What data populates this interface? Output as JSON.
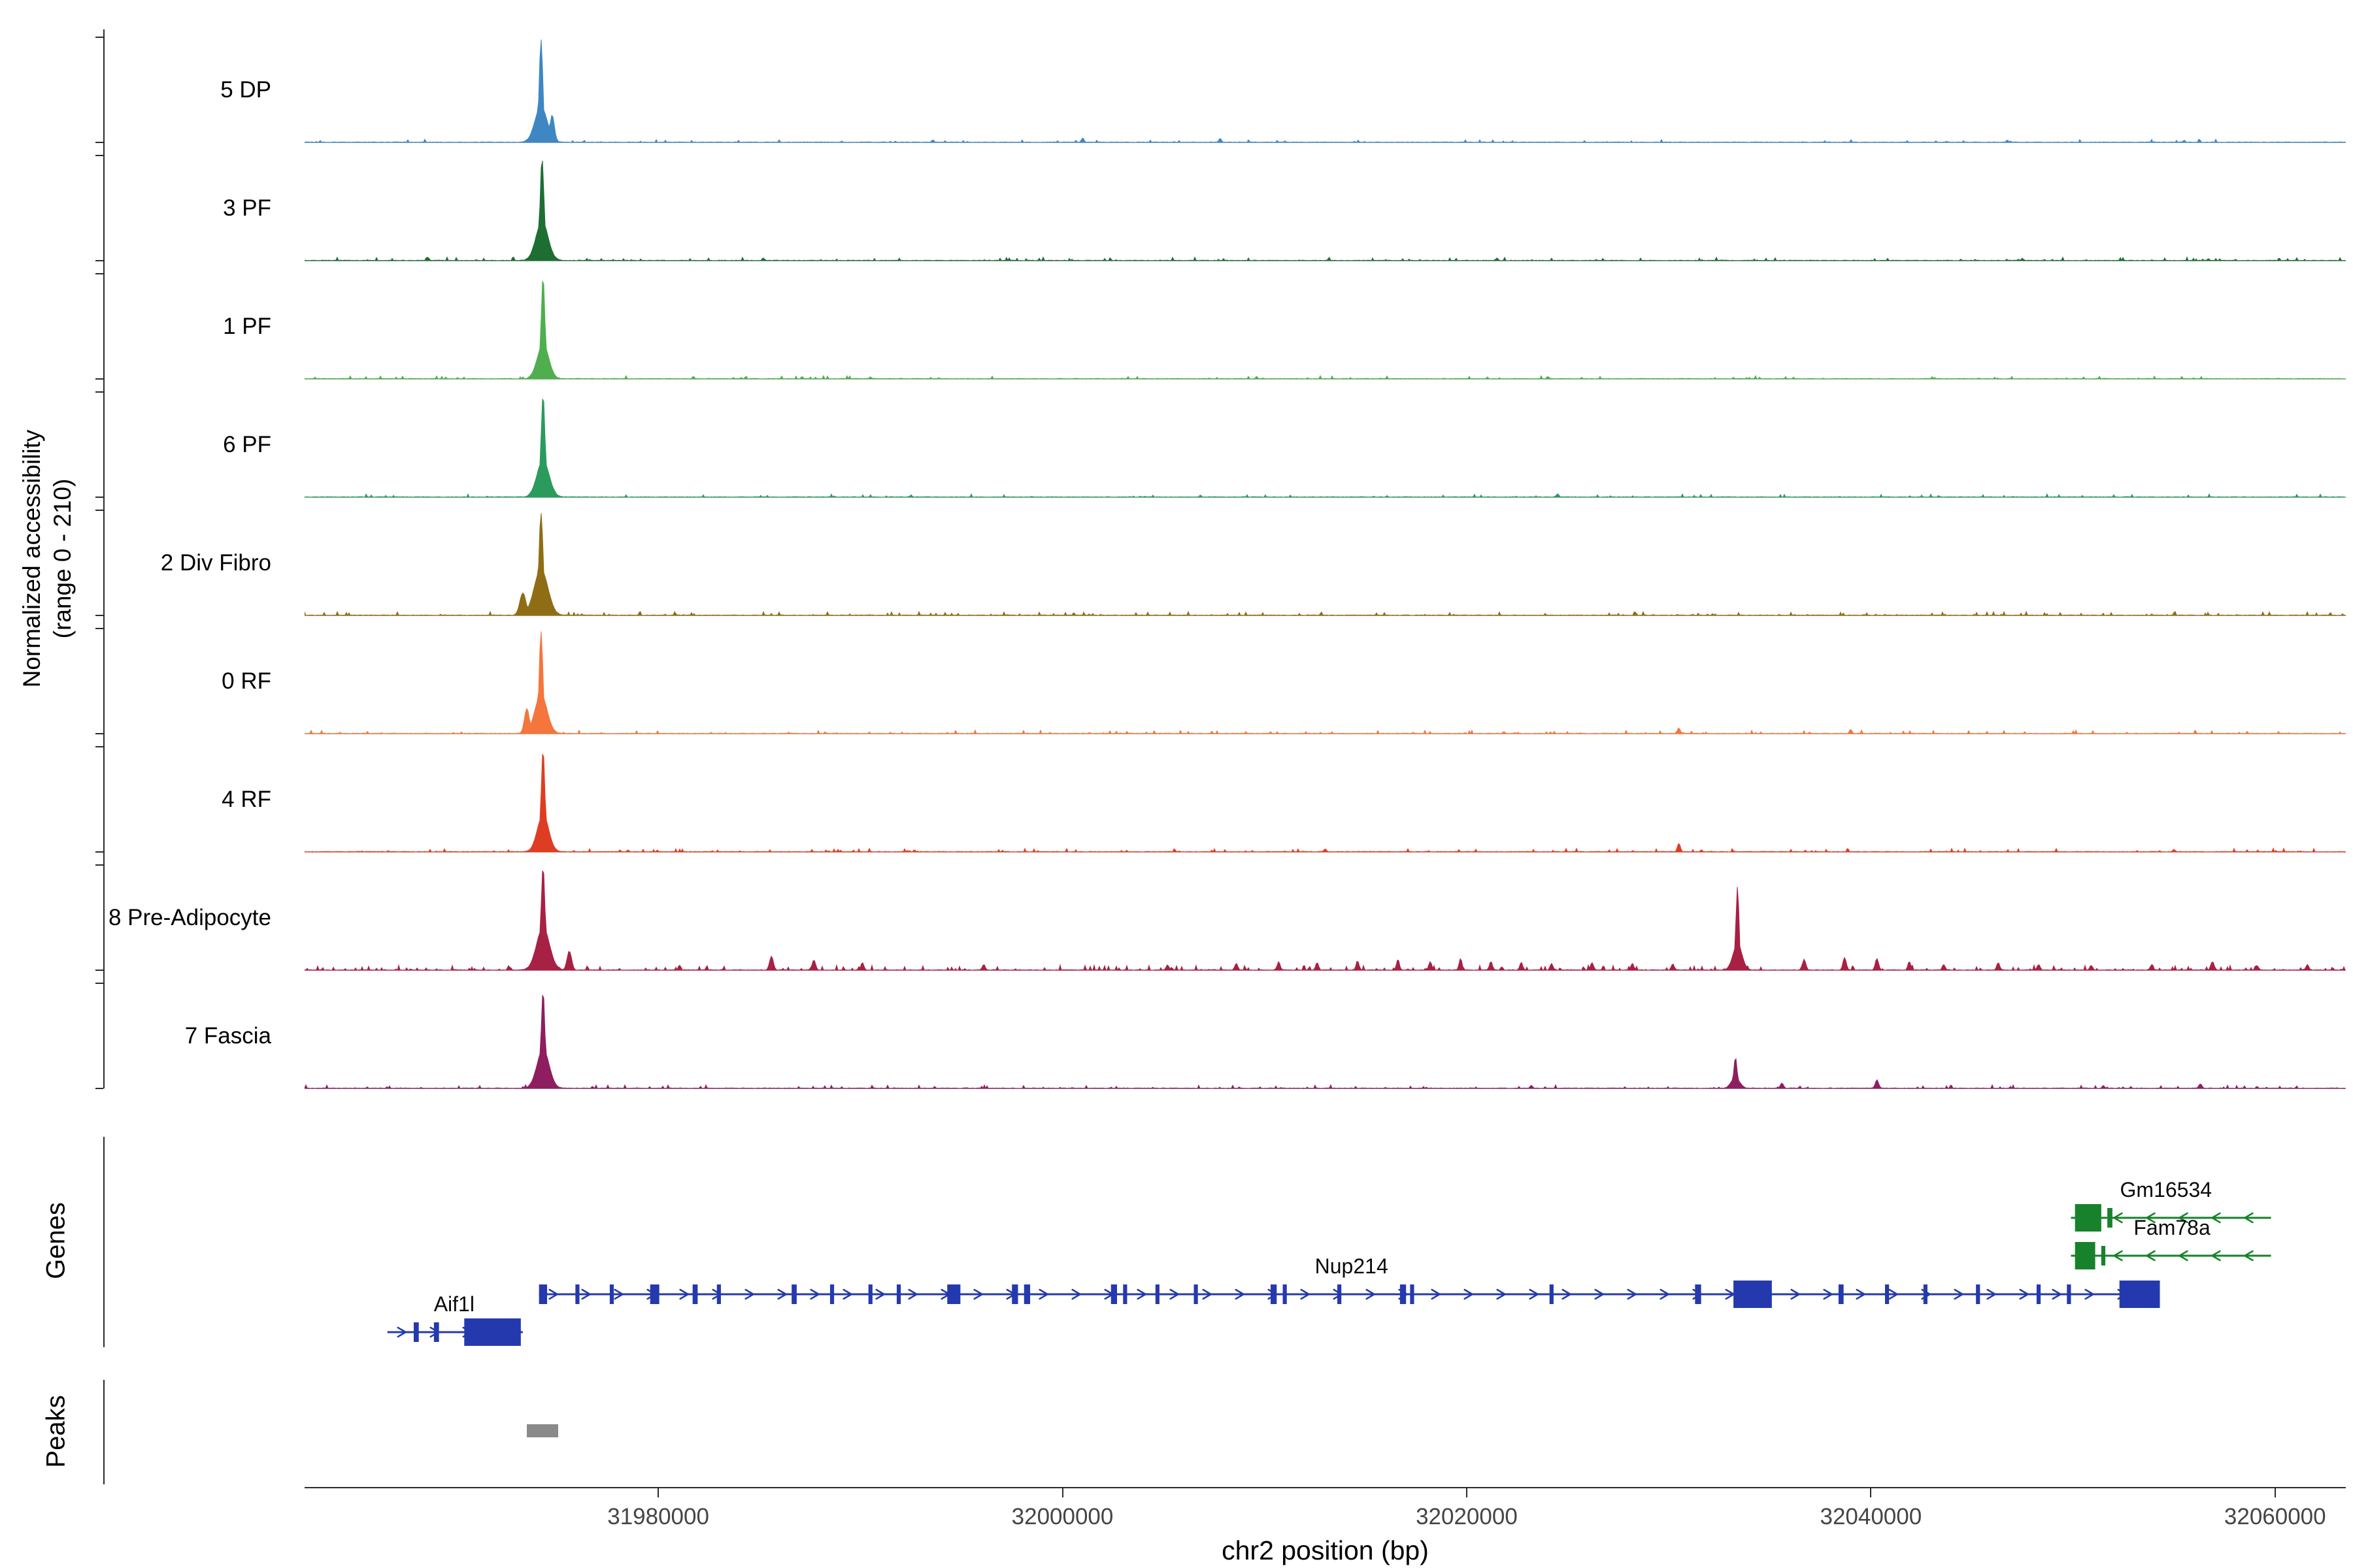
{
  "labels": {
    "y_axis_line1": "Normalized accessibility",
    "y_axis_line2": "(range 0 - 210)",
    "genes_section": "Genes",
    "peaks_section": "Peaks",
    "x_axis_title": "chr2 position (bp)"
  },
  "chart_data": {
    "type": "area",
    "title": "",
    "xlabel": "chr2 position (bp)",
    "ylabel": "Normalized accessibility (range 0 - 210)",
    "xlim": [
      31962500,
      32063500
    ],
    "ylim": [
      0,
      210
    ],
    "x_ticks": [
      31980000,
      32000000,
      32020000,
      32040000,
      32060000
    ],
    "legend_position": "left-track-labels",
    "grid": false,
    "tracks": [
      {
        "label": "5 DP",
        "color": "#3E87C2",
        "seed": 101,
        "noise_level": 3.5,
        "noise_density": 0.05,
        "peaks": [
          [
            31974200,
            300,
            72
          ],
          [
            31974200,
            90,
            206
          ],
          [
            31974750,
            110,
            55
          ],
          [
            32001000,
            55,
            9
          ],
          [
            32007800,
            55,
            8
          ],
          [
            31993600,
            50,
            5
          ],
          [
            32055500,
            50,
            4
          ]
        ]
      },
      {
        "label": "3 PF",
        "color": "#1E6E34",
        "seed": 202,
        "noise_level": 4,
        "noise_density": 0.07,
        "peaks": [
          [
            31974250,
            300,
            78
          ],
          [
            31974250,
            95,
            206
          ],
          [
            31968600,
            60,
            6
          ],
          [
            31985200,
            55,
            5
          ],
          [
            32021500,
            55,
            5
          ],
          [
            32047500,
            55,
            4
          ]
        ]
      },
      {
        "label": "1 PF",
        "color": "#4FAE4E",
        "seed": 303,
        "noise_level": 3.5,
        "noise_density": 0.06,
        "peaks": [
          [
            31974300,
            280,
            70
          ],
          [
            31974300,
            90,
            206
          ],
          [
            31990500,
            50,
            4
          ],
          [
            32024000,
            50,
            4
          ]
        ]
      },
      {
        "label": "6 PF",
        "color": "#2B9A5D",
        "seed": 404,
        "noise_level": 3.5,
        "noise_density": 0.06,
        "peaks": [
          [
            31974300,
            300,
            74
          ],
          [
            31974300,
            95,
            206
          ],
          [
            32024500,
            60,
            6
          ],
          [
            31992500,
            50,
            4
          ]
        ]
      },
      {
        "label": "2 Div Fibro",
        "color": "#8F6D15",
        "seed": 505,
        "noise_level": 4.5,
        "noise_density": 0.1,
        "peaks": [
          [
            31974200,
            340,
            92
          ],
          [
            31974200,
            100,
            206
          ],
          [
            31973300,
            150,
            45
          ]
        ]
      },
      {
        "label": "0 RF",
        "color": "#F4763C",
        "seed": 606,
        "noise_level": 4,
        "noise_density": 0.07,
        "peaks": [
          [
            31974200,
            300,
            78
          ],
          [
            31974200,
            90,
            206
          ],
          [
            31973500,
            120,
            50
          ],
          [
            32030500,
            70,
            11
          ],
          [
            32039000,
            60,
            8
          ]
        ]
      },
      {
        "label": "4 RF",
        "color": "#DD3E23",
        "seed": 707,
        "noise_level": 4,
        "noise_density": 0.07,
        "peaks": [
          [
            31974300,
            280,
            74
          ],
          [
            31974300,
            90,
            206
          ],
          [
            32030500,
            70,
            17
          ],
          [
            32013000,
            55,
            6
          ],
          [
            32055000,
            55,
            5
          ]
        ]
      },
      {
        "label": "8 Pre-Adipocyte",
        "color": "#A82044",
        "seed": 808,
        "noise_level": 6,
        "noise_density": 0.13,
        "peaks": [
          [
            31974300,
            320,
            85
          ],
          [
            31974300,
            95,
            208
          ],
          [
            31975600,
            110,
            38
          ],
          [
            32033400,
            220,
            52
          ],
          [
            32033400,
            75,
            168
          ],
          [
            31985600,
            90,
            28
          ],
          [
            31987700,
            80,
            20
          ],
          [
            31990100,
            70,
            15
          ],
          [
            31996100,
            70,
            11
          ],
          [
            32005200,
            70,
            10
          ],
          [
            32008600,
            70,
            13
          ],
          [
            32010700,
            70,
            17
          ],
          [
            32012600,
            70,
            15
          ],
          [
            32014600,
            70,
            19
          ],
          [
            32016600,
            70,
            21
          ],
          [
            32018200,
            70,
            17
          ],
          [
            32019700,
            70,
            23
          ],
          [
            32021200,
            70,
            17
          ],
          [
            32022700,
            70,
            15
          ],
          [
            32024200,
            70,
            13
          ],
          [
            32026200,
            70,
            15
          ],
          [
            32028200,
            70,
            13
          ],
          [
            32030200,
            70,
            12
          ],
          [
            32036700,
            80,
            21
          ],
          [
            32038700,
            80,
            25
          ],
          [
            32040300,
            80,
            23
          ],
          [
            32041900,
            70,
            17
          ],
          [
            32043600,
            70,
            11
          ],
          [
            32046300,
            70,
            15
          ],
          [
            32048300,
            70,
            11
          ],
          [
            32050900,
            70,
            9
          ],
          [
            32053900,
            70,
            11
          ],
          [
            32056900,
            80,
            17
          ],
          [
            32059100,
            70,
            9
          ],
          [
            32061600,
            70,
            11
          ]
        ]
      },
      {
        "label": "7 Fascia",
        "color": "#8E1E5F",
        "seed": 909,
        "noise_level": 4,
        "noise_density": 0.07,
        "peaks": [
          [
            31974300,
            300,
            78
          ],
          [
            31974300,
            90,
            196
          ],
          [
            32033300,
            200,
            22
          ],
          [
            32033300,
            80,
            62
          ],
          [
            32035600,
            70,
            11
          ],
          [
            32040300,
            80,
            17
          ],
          [
            32056300,
            70,
            9
          ],
          [
            32023200,
            55,
            6
          ],
          [
            32051500,
            55,
            5
          ]
        ]
      }
    ],
    "genes": [
      {
        "name": "Gm16534",
        "strand": "-",
        "color": "#17822B",
        "row": 0,
        "start": 32049900,
        "end": 32059800,
        "label_bp": 32054600,
        "exons": [
          [
            32050100,
            32051400,
            1
          ],
          [
            32051700,
            32051950,
            0
          ]
        ]
      },
      {
        "name": "Fam78a",
        "strand": "-",
        "color": "#17822B",
        "row": 1,
        "start": 32049900,
        "end": 32059800,
        "label_bp": 32054900,
        "exons": [
          [
            32050100,
            32051100,
            1
          ],
          [
            32051400,
            32051600,
            0
          ]
        ]
      },
      {
        "name": "Nup214",
        "strand": "+",
        "color": "#2539AE",
        "row": 2,
        "start": 31974100,
        "end": 32054300,
        "label_bp": 32014300,
        "exons": [
          [
            31974100,
            31974500,
            0
          ],
          [
            31975900,
            31976100,
            0
          ],
          [
            31977600,
            31977800,
            0
          ],
          [
            31979600,
            31980050,
            0
          ],
          [
            31981700,
            31981950,
            0
          ],
          [
            31982900,
            31983100,
            0
          ],
          [
            31986600,
            31986850,
            0
          ],
          [
            31988500,
            31988700,
            0
          ],
          [
            31990400,
            31990600,
            0
          ],
          [
            31991800,
            31992000,
            0
          ],
          [
            31994300,
            31994950,
            0
          ],
          [
            31997500,
            31997800,
            0
          ],
          [
            31998100,
            31998400,
            0
          ],
          [
            32002400,
            32002700,
            0
          ],
          [
            32003000,
            32003200,
            0
          ],
          [
            32004600,
            32004800,
            0
          ],
          [
            32006500,
            32006700,
            0
          ],
          [
            32010300,
            32010600,
            0
          ],
          [
            32010900,
            32011100,
            0
          ],
          [
            32013600,
            32013800,
            0
          ],
          [
            32016700,
            32017000,
            0
          ],
          [
            32017200,
            32017400,
            0
          ],
          [
            32024100,
            32024300,
            0
          ],
          [
            32031300,
            32031600,
            0
          ],
          [
            32033200,
            32035100,
            1
          ],
          [
            32038400,
            32038650,
            0
          ],
          [
            32040700,
            32040900,
            0
          ],
          [
            32042600,
            32042800,
            0
          ],
          [
            32045200,
            32045400,
            0
          ],
          [
            32048200,
            32048400,
            0
          ],
          [
            32049700,
            32049900,
            0
          ],
          [
            32052300,
            32054300,
            1
          ]
        ]
      },
      {
        "name": "Aif1l",
        "strand": "+",
        "color": "#2539AE",
        "row": 3,
        "start": 31966600,
        "end": 31973300,
        "label_bp": 31969900,
        "exons": [
          [
            31967900,
            31968150,
            0
          ],
          [
            31968900,
            31969150,
            0
          ],
          [
            31970400,
            31973200,
            1
          ]
        ]
      }
    ],
    "peak_regions": [
      [
        31973500,
        31975050
      ]
    ]
  }
}
